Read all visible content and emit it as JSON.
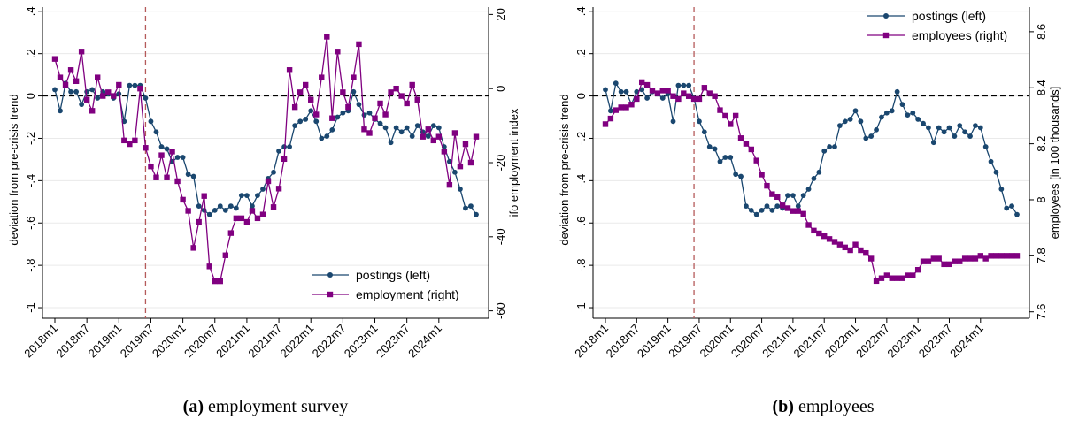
{
  "colors": {
    "postings": "#1a476f",
    "secondary": "#800080",
    "grid": "#eaeaea",
    "zero_line": "#000000",
    "crisis_line": "#b55a5a"
  },
  "chart_data": [
    {
      "type": "line",
      "caption_letter": "(a)",
      "caption_text": "employment survey",
      "x_tick_labels": [
        "2018m1",
        "2018m7",
        "2019m1",
        "2019m7",
        "2020m1",
        "2020m7",
        "2021m1",
        "2021m7",
        "2022m1",
        "2022m7",
        "2023m1",
        "2023m7",
        "2024m1"
      ],
      "x_range": [
        0,
        79
      ],
      "ylabel_left": "deviation from pre-crisis trend",
      "ylabel_right": "ifo employment index",
      "ylim_left": [
        -1.05,
        0.42
      ],
      "ylim_right": [
        -62,
        22
      ],
      "yticks_left": [
        ".4",
        ".2",
        "0",
        "-.2",
        "-.4",
        "-.6",
        "-.8",
        "-1"
      ],
      "yticks_left_values": [
        0.4,
        0.2,
        0,
        -0.2,
        -0.4,
        -0.6,
        -0.8,
        -1
      ],
      "yticks_right": [
        "20",
        "0",
        "-20",
        "-40",
        "-60"
      ],
      "yticks_right_values": [
        20,
        0,
        -20,
        -40,
        -60
      ],
      "crisis_x": 17,
      "zero_line_left": 0,
      "legend_position": "bottom-right",
      "series": [
        {
          "name": "postings (left)",
          "axis": "left",
          "marker": "circle",
          "values": [
            0.03,
            -0.07,
            0.06,
            0.02,
            0.02,
            -0.04,
            0.02,
            0.03,
            -0.01,
            0.02,
            0.01,
            -0.01,
            0.01,
            -0.12,
            0.05,
            0.05,
            0.05,
            -0.01,
            -0.12,
            -0.17,
            -0.24,
            -0.25,
            -0.31,
            -0.29,
            -0.29,
            -0.37,
            -0.38,
            -0.52,
            -0.54,
            -0.56,
            -0.54,
            -0.52,
            -0.54,
            -0.52,
            -0.53,
            -0.47,
            -0.47,
            -0.52,
            -0.47,
            -0.44,
            -0.39,
            -0.36,
            -0.26,
            -0.24,
            -0.24,
            -0.14,
            -0.12,
            -0.11,
            -0.07,
            -0.12,
            -0.2,
            -0.19,
            -0.16,
            -0.1,
            -0.08,
            -0.07,
            0.02,
            -0.04,
            -0.09,
            -0.08,
            -0.11,
            -0.13,
            -0.15,
            -0.22,
            -0.15,
            -0.17,
            -0.15,
            -0.19,
            -0.14,
            -0.17,
            -0.19,
            -0.14,
            -0.15,
            -0.24,
            -0.31,
            -0.36,
            -0.44,
            -0.53,
            -0.52,
            -0.56
          ]
        },
        {
          "name": "employment (right)",
          "axis": "right",
          "marker": "square",
          "values": [
            8,
            3,
            1,
            5,
            2,
            10,
            -3,
            -6,
            3,
            -2,
            -1,
            -2,
            1,
            -14,
            -15,
            -14,
            0,
            -16,
            -21,
            -24,
            -18,
            -24,
            -17,
            -25,
            -30,
            -33,
            -43,
            -36,
            -29,
            -48,
            -52,
            -52,
            -45,
            -39,
            -35,
            -35,
            -36,
            -33,
            -35,
            -34,
            -25,
            -32,
            -27,
            -19,
            5,
            -5,
            -1,
            1,
            -3,
            -7,
            3,
            14,
            -8,
            10,
            -1,
            -5,
            3,
            12,
            -11,
            -12,
            -8,
            -4,
            -7,
            -1,
            0,
            -2,
            -4,
            1,
            -3,
            -13,
            -11,
            -14,
            -13,
            -17,
            -26,
            -12,
            -21,
            -15,
            -20,
            -13
          ]
        }
      ]
    },
    {
      "type": "line",
      "caption_letter": "(b)",
      "caption_text": "employees",
      "x_tick_labels": [
        "2018m1",
        "2018m7",
        "2019m1",
        "2019m7",
        "2020m1",
        "2020m7",
        "2021m1",
        "2021m7",
        "2022m1",
        "2022m7",
        "2023m1",
        "2023m7",
        "2024m1"
      ],
      "x_range": [
        0,
        79
      ],
      "ylabel_left": "deviation from pre-crisis trend",
      "ylabel_right": "employees [in 100 thousands]",
      "ylim_left": [
        -1.05,
        0.42
      ],
      "ylim_right": [
        7.577,
        8.688
      ],
      "yticks_left": [
        ".4",
        ".2",
        "0",
        "-.2",
        "-.4",
        "-.6",
        "-.8",
        "-1"
      ],
      "yticks_left_values": [
        0.4,
        0.2,
        0,
        -0.2,
        -0.4,
        -0.6,
        -0.8,
        -1
      ],
      "yticks_right": [
        "8.6",
        "8.4",
        "8.2",
        "8",
        "7.8",
        "7.6"
      ],
      "yticks_right_values": [
        8.6,
        8.4,
        8.2,
        8.0,
        7.8,
        7.6
      ],
      "crisis_x": 17,
      "zero_line_left": 0,
      "legend_position": "top-right",
      "series": [
        {
          "name": "postings (left)",
          "axis": "left",
          "marker": "circle",
          "values": [
            0.03,
            -0.07,
            0.06,
            0.02,
            0.02,
            -0.04,
            0.02,
            0.03,
            -0.01,
            0.02,
            0.01,
            -0.01,
            0.01,
            -0.12,
            0.05,
            0.05,
            0.05,
            -0.01,
            -0.12,
            -0.17,
            -0.24,
            -0.25,
            -0.31,
            -0.29,
            -0.29,
            -0.37,
            -0.38,
            -0.52,
            -0.54,
            -0.56,
            -0.54,
            -0.52,
            -0.54,
            -0.52,
            -0.53,
            -0.47,
            -0.47,
            -0.52,
            -0.47,
            -0.44,
            -0.39,
            -0.36,
            -0.26,
            -0.24,
            -0.24,
            -0.14,
            -0.12,
            -0.11,
            -0.07,
            -0.12,
            -0.2,
            -0.19,
            -0.16,
            -0.1,
            -0.08,
            -0.07,
            0.02,
            -0.04,
            -0.09,
            -0.08,
            -0.11,
            -0.13,
            -0.15,
            -0.22,
            -0.15,
            -0.17,
            -0.15,
            -0.19,
            -0.14,
            -0.17,
            -0.19,
            -0.14,
            -0.15,
            -0.24,
            -0.31,
            -0.36,
            -0.44,
            -0.53,
            -0.52,
            -0.56
          ]
        },
        {
          "name": "employees (right)",
          "axis": "right",
          "marker": "square",
          "values": [
            8.27,
            8.29,
            8.32,
            8.33,
            8.33,
            8.34,
            8.36,
            8.42,
            8.41,
            8.39,
            8.38,
            8.39,
            8.39,
            8.37,
            8.36,
            8.38,
            8.37,
            8.36,
            8.36,
            8.4,
            8.38,
            8.37,
            8.32,
            8.3,
            8.27,
            8.3,
            8.22,
            8.2,
            8.18,
            8.14,
            8.09,
            8.05,
            8.02,
            8.01,
            7.98,
            7.97,
            7.96,
            7.96,
            7.95,
            7.91,
            7.89,
            7.88,
            7.87,
            7.86,
            7.85,
            7.84,
            7.83,
            7.82,
            7.84,
            7.82,
            7.81,
            7.79,
            7.71,
            7.72,
            7.73,
            7.72,
            7.72,
            7.72,
            7.73,
            7.73,
            7.75,
            7.78,
            7.78,
            7.79,
            7.79,
            7.77,
            7.77,
            7.78,
            7.78,
            7.79,
            7.79,
            7.79,
            7.8,
            7.79,
            7.8,
            7.8,
            7.8,
            7.8,
            7.8,
            7.8
          ]
        }
      ]
    }
  ]
}
